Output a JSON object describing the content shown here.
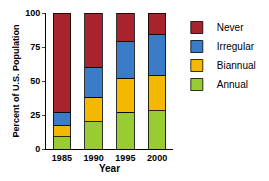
{
  "chart_data": {
    "type": "bar",
    "stacked": true,
    "x_label": "Year",
    "y_label": "Percent of U.S. Population",
    "categories": [
      "1985",
      "1990",
      "1995",
      "2000"
    ],
    "series": [
      {
        "name": "Annual",
        "color": "#99cc33",
        "values": [
          9,
          20,
          27,
          28
        ]
      },
      {
        "name": "Biannual",
        "color": "#f5b800",
        "values": [
          8,
          18,
          25,
          26
        ]
      },
      {
        "name": "Irregular",
        "color": "#3a7cc7",
        "values": [
          10,
          22,
          27,
          30
        ]
      },
      {
        "name": "Never",
        "color": "#a8232b",
        "values": [
          73,
          40,
          21,
          16
        ]
      }
    ],
    "ylim": [
      0,
      100
    ],
    "yticks": [
      0,
      25,
      50,
      75,
      100
    ],
    "grid": false,
    "legend": "right"
  }
}
